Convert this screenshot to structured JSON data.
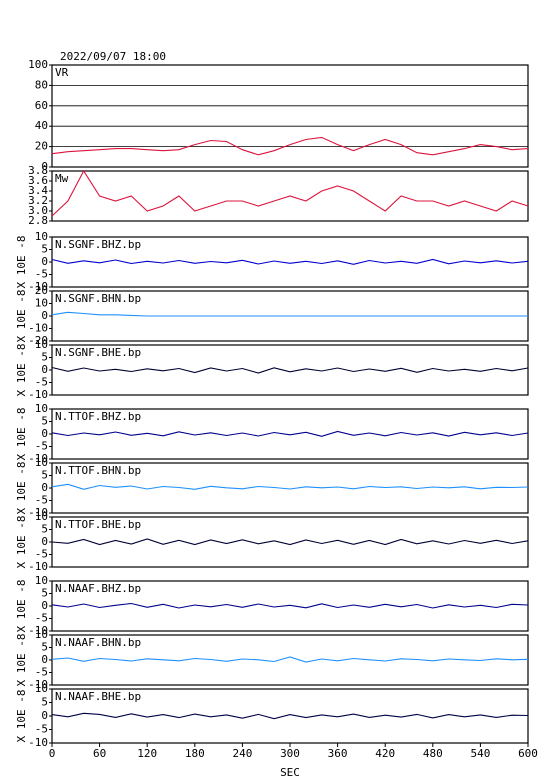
{
  "chart_data": [
    {
      "type": "line",
      "title": "2022/09/07 18:00",
      "label": "VR",
      "xlim": [
        0,
        600
      ],
      "ylim": [
        0,
        100
      ],
      "yticks": [
        0,
        20,
        40,
        60,
        80,
        100
      ],
      "grid": true,
      "x": [
        0,
        20,
        40,
        60,
        80,
        100,
        120,
        140,
        160,
        180,
        200,
        220,
        240,
        260,
        280,
        300,
        320,
        340,
        360,
        380,
        400,
        420,
        440,
        460,
        480,
        500,
        520,
        540,
        560,
        580,
        600
      ],
      "series": [
        {
          "color": "#dc143c",
          "values": [
            13,
            15,
            16,
            17,
            18,
            18,
            17,
            16,
            17,
            22,
            26,
            25,
            17,
            12,
            16,
            22,
            27,
            29,
            22,
            16,
            22,
            27,
            22,
            14,
            12,
            15,
            18,
            22,
            20,
            17,
            18
          ]
        }
      ]
    },
    {
      "type": "line",
      "label": "Mw",
      "xlim": [
        0,
        600
      ],
      "ylim": [
        2.8,
        3.8
      ],
      "yticks": [
        2.8,
        {
          "value": 3.0,
          "label": "3.0"
        },
        3.2,
        3.4,
        3.6,
        3.8
      ],
      "grid": false,
      "x": [
        0,
        20,
        40,
        60,
        80,
        100,
        120,
        140,
        160,
        180,
        200,
        220,
        240,
        260,
        280,
        300,
        320,
        340,
        360,
        380,
        400,
        420,
        440,
        460,
        480,
        500,
        520,
        540,
        560,
        580,
        600
      ],
      "series": [
        {
          "color": "#dc143c",
          "values": [
            2.9,
            3.2,
            3.8,
            3.3,
            3.2,
            3.3,
            3.0,
            3.1,
            3.3,
            3.0,
            3.1,
            3.2,
            3.2,
            3.1,
            3.2,
            3.3,
            3.2,
            3.4,
            3.5,
            3.4,
            3.2,
            3.0,
            3.3,
            3.2,
            3.2,
            3.1,
            3.2,
            3.1,
            3.0,
            3.2,
            3.1
          ]
        }
      ]
    },
    {
      "type": "line",
      "label": "N.SGNF.BHZ.bp",
      "ylabel": "X 10E -8",
      "xlim": [
        0,
        600
      ],
      "ylim": [
        -10,
        10
      ],
      "yticks": [
        -10,
        -5,
        0,
        5,
        10
      ],
      "grid": false,
      "x": [
        0,
        20,
        40,
        60,
        80,
        100,
        120,
        140,
        160,
        180,
        200,
        220,
        240,
        260,
        280,
        300,
        320,
        340,
        360,
        380,
        400,
        420,
        440,
        460,
        480,
        500,
        520,
        540,
        560,
        580,
        600
      ],
      "series": [
        {
          "color": "#0000cd",
          "values": [
            1,
            -0.5,
            0.5,
            -0.3,
            0.8,
            -0.6,
            0.3,
            -0.4,
            0.6,
            -0.5,
            0.2,
            -0.3,
            0.7,
            -0.8,
            0.4,
            -0.5,
            0.3,
            -0.6,
            0.5,
            -0.9,
            0.6,
            -0.4,
            0.3,
            -0.5,
            1,
            -0.7,
            0.4,
            -0.3,
            0.5,
            -0.4,
            0.3
          ]
        }
      ]
    },
    {
      "type": "line",
      "label": "N.SGNF.BHN.bp",
      "ylabel": "X 10E -8",
      "xlim": [
        0,
        600
      ],
      "ylim": [
        -20,
        20
      ],
      "yticks": [
        -20,
        -10,
        0,
        10,
        20
      ],
      "grid": false,
      "x": [
        0,
        20,
        40,
        60,
        80,
        100,
        120,
        140,
        160,
        180,
        200,
        220,
        240,
        260,
        280,
        300,
        320,
        340,
        360,
        380,
        400,
        420,
        440,
        460,
        480,
        500,
        520,
        540,
        560,
        580,
        600
      ],
      "series": [
        {
          "color": "#1e90ff",
          "values": [
            1,
            3,
            2,
            1,
            1,
            0.5,
            0,
            0,
            0,
            0,
            0,
            0,
            0,
            0,
            0,
            0,
            0,
            0,
            0,
            0,
            0,
            0,
            0,
            0,
            0,
            0,
            0,
            0,
            0,
            0,
            0
          ]
        }
      ]
    },
    {
      "type": "line",
      "label": "N.SGNF.BHE.bp",
      "ylabel": "X 10E -8",
      "xlim": [
        0,
        600
      ],
      "ylim": [
        -10,
        10
      ],
      "yticks": [
        -10,
        -5,
        0,
        5,
        10
      ],
      "grid": false,
      "x": [
        0,
        20,
        40,
        60,
        80,
        100,
        120,
        140,
        160,
        180,
        200,
        220,
        240,
        260,
        280,
        300,
        320,
        340,
        360,
        380,
        400,
        420,
        440,
        460,
        480,
        500,
        520,
        540,
        560,
        580,
        600
      ],
      "series": [
        {
          "color": "#000033",
          "values": [
            1,
            -0.5,
            0.8,
            -0.4,
            0.3,
            -0.6,
            0.5,
            -0.3,
            0.6,
            -1,
            0.8,
            -0.4,
            0.6,
            -1.2,
            0.9,
            -0.7,
            0.5,
            -0.4,
            0.8,
            -0.6,
            0.4,
            -0.5,
            0.7,
            -0.9,
            0.6,
            -0.4,
            0.3,
            -0.5,
            0.6,
            -0.3,
            0.8
          ]
        }
      ]
    },
    {
      "type": "line",
      "label": "N.TTOF.BHZ.bp",
      "ylabel": "X 10E -8",
      "xlim": [
        0,
        600
      ],
      "ylim": [
        -10,
        10
      ],
      "yticks": [
        -10,
        -5,
        0,
        5,
        10
      ],
      "grid": false,
      "x": [
        0,
        20,
        40,
        60,
        80,
        100,
        120,
        140,
        160,
        180,
        200,
        220,
        240,
        260,
        280,
        300,
        320,
        340,
        360,
        380,
        400,
        420,
        440,
        460,
        480,
        500,
        520,
        540,
        560,
        580,
        600
      ],
      "series": [
        {
          "color": "#00008b",
          "values": [
            0.5,
            -0.6,
            0.4,
            -0.3,
            0.8,
            -0.5,
            0.3,
            -0.7,
            0.9,
            -0.4,
            0.5,
            -0.6,
            0.4,
            -0.8,
            0.6,
            -0.3,
            0.7,
            -0.9,
            1,
            -0.5,
            0.4,
            -0.7,
            0.6,
            -0.4,
            0.5,
            -0.8,
            0.7,
            -0.3,
            0.5,
            -0.6,
            0.4
          ]
        }
      ]
    },
    {
      "type": "line",
      "label": "N.TTOF.BHN.bp",
      "ylabel": "X 10E -8",
      "xlim": [
        0,
        600
      ],
      "ylim": [
        -10,
        10
      ],
      "yticks": [
        -10,
        -5,
        0,
        5,
        10
      ],
      "grid": false,
      "x": [
        0,
        20,
        40,
        60,
        80,
        100,
        120,
        140,
        160,
        180,
        200,
        220,
        240,
        260,
        280,
        300,
        320,
        340,
        360,
        380,
        400,
        420,
        440,
        460,
        480,
        500,
        520,
        540,
        560,
        580,
        600
      ],
      "series": [
        {
          "color": "#1e90ff",
          "values": [
            0.5,
            1.5,
            -0.5,
            1,
            0.3,
            0.8,
            -0.4,
            0.6,
            0.2,
            -0.5,
            0.7,
            0.1,
            -0.3,
            0.6,
            0.2,
            -0.4,
            0.5,
            0.1,
            0.4,
            -0.3,
            0.6,
            0.2,
            0.5,
            -0.2,
            0.4,
            0.1,
            0.5,
            -0.3,
            0.3,
            0.2,
            0.4
          ]
        }
      ]
    },
    {
      "type": "line",
      "label": "N.TTOF.BHE.bp",
      "ylabel": "X 10E -8",
      "xlim": [
        0,
        600
      ],
      "ylim": [
        -10,
        10
      ],
      "yticks": [
        -10,
        -5,
        0,
        5,
        10
      ],
      "grid": false,
      "x": [
        0,
        20,
        40,
        60,
        80,
        100,
        120,
        140,
        160,
        180,
        200,
        220,
        240,
        260,
        280,
        300,
        320,
        340,
        360,
        380,
        400,
        420,
        440,
        460,
        480,
        500,
        520,
        540,
        560,
        580,
        600
      ],
      "series": [
        {
          "color": "#000033",
          "values": [
            0,
            -0.5,
            1,
            -1,
            0.6,
            -0.8,
            1.2,
            -0.9,
            0.7,
            -1,
            0.8,
            -0.6,
            0.9,
            -0.7,
            0.5,
            -1,
            0.8,
            -0.6,
            0.7,
            -0.9,
            0.6,
            -1,
            1,
            -0.7,
            0.5,
            -0.8,
            0.6,
            -0.5,
            0.7,
            -0.6,
            0.5
          ]
        }
      ]
    },
    {
      "type": "line",
      "label": "N.NAAF.BHZ.bp",
      "ylabel": "X 10E -8",
      "xlim": [
        0,
        600
      ],
      "ylim": [
        -10,
        10
      ],
      "yticks": [
        -10,
        -5,
        0,
        5,
        10
      ],
      "grid": false,
      "x": [
        0,
        20,
        40,
        60,
        80,
        100,
        120,
        140,
        160,
        180,
        200,
        220,
        240,
        260,
        280,
        300,
        320,
        340,
        360,
        380,
        400,
        420,
        440,
        460,
        480,
        500,
        520,
        540,
        560,
        580,
        600
      ],
      "series": [
        {
          "color": "#00008b",
          "values": [
            0.5,
            -0.4,
            0.8,
            -0.6,
            0.3,
            1,
            -0.5,
            0.7,
            -0.8,
            0.4,
            -0.3,
            0.6,
            -0.5,
            0.8,
            -0.4,
            0.3,
            -0.7,
            0.9,
            -0.6,
            0.4,
            -0.5,
            0.7,
            -0.3,
            0.6,
            -0.8,
            0.5,
            -0.4,
            0.3,
            -0.6,
            0.7,
            0.4
          ]
        }
      ]
    },
    {
      "type": "line",
      "label": "N.NAAF.BHN.bp",
      "ylabel": "X 10E -8",
      "xlim": [
        0,
        600
      ],
      "ylim": [
        -10,
        10
      ],
      "yticks": [
        -10,
        -5,
        0,
        5,
        10
      ],
      "grid": false,
      "x": [
        0,
        20,
        40,
        60,
        80,
        100,
        120,
        140,
        160,
        180,
        200,
        220,
        240,
        260,
        280,
        300,
        320,
        340,
        360,
        380,
        400,
        420,
        440,
        460,
        480,
        500,
        520,
        540,
        560,
        580,
        600
      ],
      "series": [
        {
          "color": "#1e90ff",
          "values": [
            0.3,
            0.8,
            -0.5,
            0.6,
            0.2,
            -0.4,
            0.5,
            0.1,
            -0.3,
            0.6,
            0.2,
            -0.5,
            0.4,
            0.1,
            -0.6,
            1.2,
            -0.8,
            0.4,
            -0.3,
            0.6,
            0.1,
            -0.4,
            0.5,
            0.2,
            -0.3,
            0.4,
            0.1,
            -0.2,
            0.5,
            0.1,
            0.3
          ]
        }
      ]
    },
    {
      "type": "line",
      "label": "N.NAAF.BHE.bp",
      "ylabel": "X 10E -8",
      "xlabel": "SEC",
      "xlim": [
        0,
        600
      ],
      "ylim": [
        -10,
        10
      ],
      "yticks": [
        -10,
        -5,
        0,
        5,
        10
      ],
      "xticks": [
        0,
        60,
        120,
        180,
        240,
        300,
        360,
        420,
        480,
        540,
        600
      ],
      "grid": false,
      "x": [
        0,
        20,
        40,
        60,
        80,
        100,
        120,
        140,
        160,
        180,
        200,
        220,
        240,
        260,
        280,
        300,
        320,
        340,
        360,
        380,
        400,
        420,
        440,
        460,
        480,
        500,
        520,
        540,
        560,
        580,
        600
      ],
      "series": [
        {
          "color": "#000044",
          "values": [
            0.5,
            -0.3,
            1,
            0.6,
            -0.5,
            0.8,
            -0.4,
            0.5,
            -0.6,
            0.7,
            -0.3,
            0.4,
            -0.8,
            0.6,
            -1,
            0.5,
            -0.6,
            0.4,
            -0.3,
            0.7,
            -0.5,
            0.3,
            -0.4,
            0.6,
            -0.7,
            0.5,
            -0.3,
            0.4,
            -0.5,
            0.3,
            0.2
          ]
        }
      ]
    }
  ]
}
